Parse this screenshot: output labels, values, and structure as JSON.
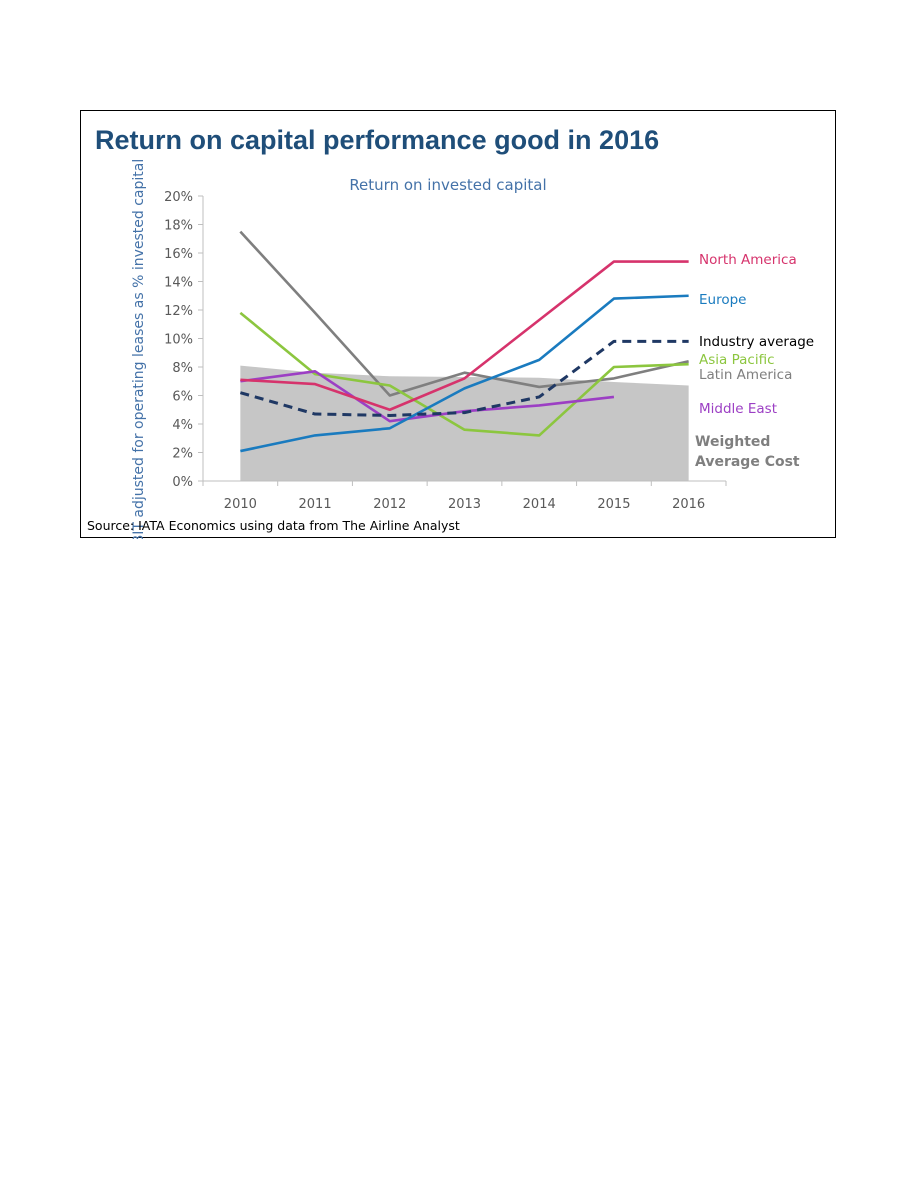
{
  "figure": {
    "headline": "Return on capital performance good in 2016",
    "source": "Source: IATA Economics using data from The Airline Analyst"
  },
  "chart_data": {
    "type": "line",
    "title": "Return on invested capital",
    "ylabel": "EBIT adjusted for operating leases as % invested capital",
    "xlabel": "",
    "categories": [
      "2010",
      "2011",
      "2012",
      "2013",
      "2014",
      "2015",
      "2016"
    ],
    "ylim": [
      0,
      20
    ],
    "yticks": [
      "0%",
      "2%",
      "4%",
      "6%",
      "8%",
      "10%",
      "12%",
      "14%",
      "16%",
      "18%",
      "20%"
    ],
    "grid": false,
    "area": {
      "name": "Weighted Average Cost",
      "label_lines": [
        "Weighted",
        "Average Cost"
      ],
      "color": "#c6c6c6",
      "values": [
        8.1,
        7.6,
        7.35,
        7.3,
        7.25,
        6.95,
        6.7
      ]
    },
    "series": [
      {
        "name": "North America",
        "color": "#d6336c",
        "dashed": false,
        "values": [
          7.1,
          6.8,
          5.0,
          7.2,
          11.3,
          15.4,
          15.4
        ]
      },
      {
        "name": "Europe",
        "color": "#1a7bbf",
        "dashed": false,
        "values": [
          2.1,
          3.2,
          3.7,
          6.5,
          8.5,
          12.8,
          13.0
        ]
      },
      {
        "name": "Industry average",
        "color": "#1f3864",
        "dashed": true,
        "values": [
          6.2,
          4.7,
          4.6,
          4.8,
          5.9,
          9.8,
          9.8
        ]
      },
      {
        "name": "Asia Pacific",
        "color": "#8cc63f",
        "dashed": false,
        "values": [
          11.8,
          7.5,
          6.7,
          3.6,
          3.2,
          8.0,
          8.2
        ]
      },
      {
        "name": "Latin America",
        "color": "#7f7f7f",
        "dashed": false,
        "values": [
          17.5,
          11.8,
          6.0,
          7.6,
          6.6,
          7.2,
          8.4
        ]
      },
      {
        "name": "Middle East",
        "color": "#9c3fc4",
        "dashed": false,
        "values": [
          7.0,
          7.7,
          4.2,
          4.9,
          5.3,
          5.9,
          null
        ]
      }
    ]
  }
}
